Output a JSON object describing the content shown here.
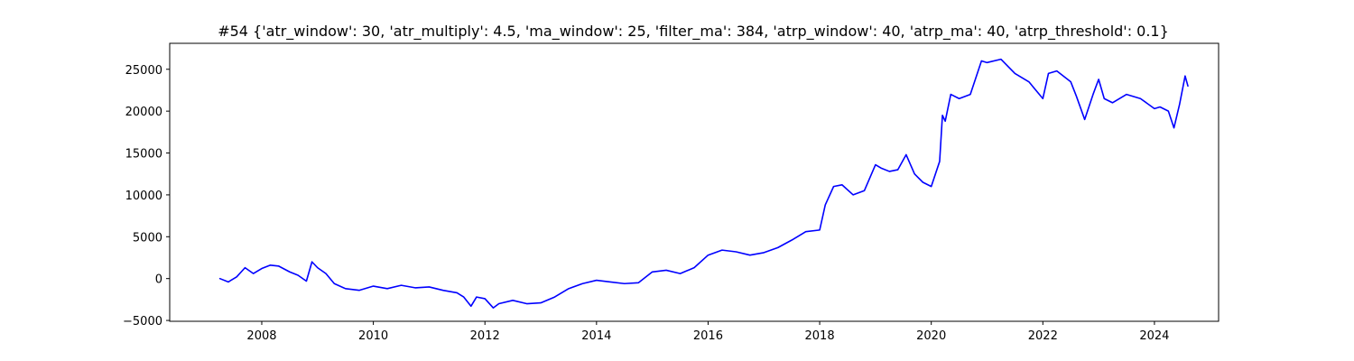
{
  "chart_data": {
    "type": "line",
    "title": "#54 {'atr_window': 30, 'atr_multiply': 4.5, 'ma_window': 25, 'filter_ma': 384, 'atrp_window': 40, 'atrp_ma': 40, 'atrp_threshold': 0.1}",
    "xlabel": "",
    "ylabel": "",
    "xlim": [
      2006.35,
      2025.15
    ],
    "ylim": [
      -5100,
      28100
    ],
    "x_ticks": [
      2008,
      2010,
      2012,
      2014,
      2016,
      2018,
      2020,
      2022,
      2024
    ],
    "x_tick_labels": [
      "2008",
      "2010",
      "2012",
      "2014",
      "2016",
      "2018",
      "2020",
      "2022",
      "2024"
    ],
    "y_ticks": [
      -5000,
      0,
      5000,
      10000,
      15000,
      20000,
      25000
    ],
    "y_tick_labels": [
      "−5000",
      "0",
      "5000",
      "10000",
      "15000",
      "20000",
      "25000"
    ],
    "grid": false,
    "legend": "none",
    "series": [
      {
        "color": "#0000ff",
        "x": [
          2007.25,
          2007.4,
          2007.55,
          2007.7,
          2007.85,
          2008.0,
          2008.15,
          2008.3,
          2008.5,
          2008.65,
          2008.8,
          2008.9,
          2009.0,
          2009.15,
          2009.3,
          2009.5,
          2009.75,
          2010.0,
          2010.25,
          2010.5,
          2010.75,
          2011.0,
          2011.25,
          2011.5,
          2011.62,
          2011.75,
          2011.85,
          2012.0,
          2012.15,
          2012.25,
          2012.5,
          2012.75,
          2013.0,
          2013.25,
          2013.5,
          2013.75,
          2014.0,
          2014.25,
          2014.5,
          2014.75,
          2015.0,
          2015.25,
          2015.5,
          2015.75,
          2016.0,
          2016.25,
          2016.5,
          2016.75,
          2017.0,
          2017.25,
          2017.5,
          2017.75,
          2018.0,
          2018.1,
          2018.25,
          2018.4,
          2018.6,
          2018.8,
          2019.0,
          2019.1,
          2019.25,
          2019.4,
          2019.55,
          2019.7,
          2019.85,
          2020.0,
          2020.15,
          2020.2,
          2020.25,
          2020.35,
          2020.5,
          2020.7,
          2020.9,
          2021.0,
          2021.25,
          2021.5,
          2021.75,
          2022.0,
          2022.1,
          2022.25,
          2022.5,
          2022.6,
          2022.75,
          2022.9,
          2023.0,
          2023.1,
          2023.25,
          2023.5,
          2023.75,
          2024.0,
          2024.1,
          2024.25,
          2024.35,
          2024.45,
          2024.55,
          2024.6
        ],
        "y": [
          0,
          -400,
          200,
          1300,
          600,
          1200,
          1600,
          1500,
          800,
          400,
          -300,
          2000,
          1300,
          600,
          -600,
          -1200,
          -1400,
          -900,
          -1200,
          -800,
          -1100,
          -1000,
          -1400,
          -1700,
          -2200,
          -3300,
          -2200,
          -2400,
          -3500,
          -3000,
          -2600,
          -3000,
          -2900,
          -2200,
          -1200,
          -600,
          -200,
          -400,
          -600,
          -500,
          800,
          1000,
          600,
          1300,
          2800,
          3400,
          3200,
          2800,
          3100,
          3700,
          4600,
          5600,
          5800,
          8800,
          11000,
          11200,
          10000,
          10500,
          13600,
          13200,
          12800,
          13000,
          14800,
          12500,
          11500,
          11000,
          14000,
          19500,
          18800,
          22000,
          21500,
          22000,
          26000,
          25800,
          26200,
          24500,
          23500,
          21500,
          24500,
          24800,
          23500,
          21800,
          19000,
          22000,
          23800,
          21500,
          21000,
          22000,
          21500,
          20300,
          20500,
          20000,
          18000,
          20800,
          24200,
          23000
        ]
      }
    ]
  }
}
